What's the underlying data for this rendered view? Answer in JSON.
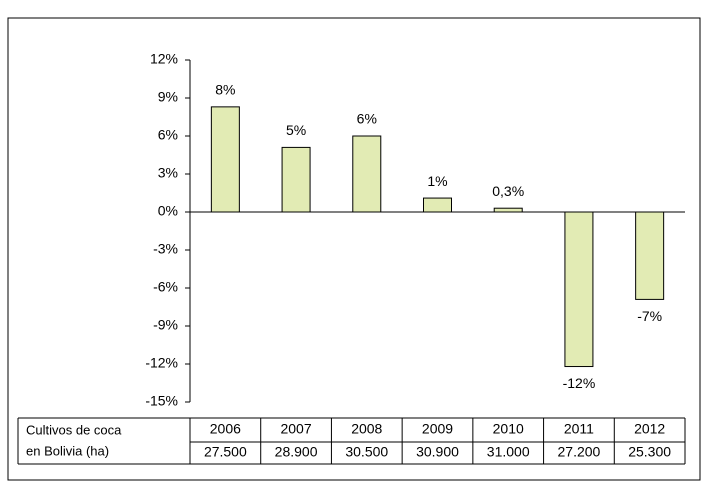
{
  "chart_data": {
    "type": "bar",
    "categories": [
      "2006",
      "2007",
      "2008",
      "2009",
      "2010",
      "2011",
      "2012"
    ],
    "values": [
      8.3,
      5.1,
      6.0,
      1.1,
      0.3,
      -12.2,
      -6.9
    ],
    "value_labels": [
      "8%",
      "5%",
      "6%",
      "1%",
      "0,3%",
      "-12%",
      "-7%"
    ],
    "color": "#e2ebb4",
    "ylim": [
      -15,
      12
    ],
    "yticks": [
      {
        "value": 12,
        "label": "12%"
      },
      {
        "value": 9,
        "label": "9%"
      },
      {
        "value": 6,
        "label": "6%"
      },
      {
        "value": 3,
        "label": "3%"
      },
      {
        "value": 0,
        "label": "0%"
      },
      {
        "value": -3,
        "label": "-3%"
      },
      {
        "value": -6,
        "label": "-6%"
      },
      {
        "value": -9,
        "label": "-9%"
      },
      {
        "value": -12,
        "label": "-12%"
      },
      {
        "value": -15,
        "label": "-15%"
      }
    ],
    "table": {
      "row_label": [
        "Cultivos de coca",
        "en Bolivia  (ha)"
      ],
      "values": [
        "27.500",
        "28.900",
        "30.500",
        "30.900",
        "31.000",
        "27.200",
        "25.300"
      ]
    }
  }
}
